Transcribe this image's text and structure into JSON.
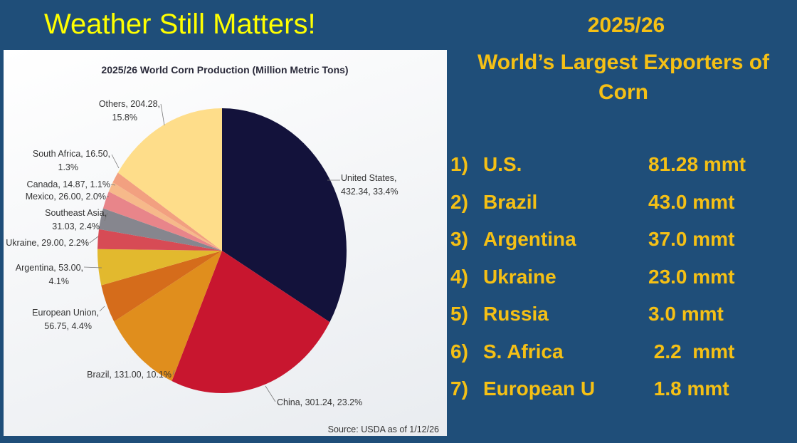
{
  "slide_title": "Weather Still Matters!",
  "right_panel": {
    "year": "2025/26",
    "heading_line1": "World’s Largest Exporters of",
    "heading_line2": "Corn",
    "exporters": [
      {
        "rank": "1)",
        "country": "U.S.",
        "amount": "81.28 mmt"
      },
      {
        "rank": "2)",
        "country": "Brazil",
        "amount": "43.0 mmt"
      },
      {
        "rank": "3)",
        "country": "Argentina",
        "amount": "37.0 mmt"
      },
      {
        "rank": "4)",
        "country": "Ukraine",
        "amount": "23.0 mmt"
      },
      {
        "rank": "5)",
        "country": "Russia",
        "amount": "3.0 mmt"
      },
      {
        "rank": "6)",
        "country": "S. Africa",
        "amount": " 2.2  mmt"
      },
      {
        "rank": "7)",
        "country": "European U",
        "amount": " 1.8 mmt"
      }
    ]
  },
  "chart_data": {
    "type": "pie",
    "title": "2025/26 World Corn Production (Million Metric Tons)",
    "source": "Source: USDA as of 1/12/26",
    "slices": [
      {
        "label": "United States",
        "value": 432.34,
        "percent": 33.4,
        "text1": "United States,",
        "text2": "432.34, 33.4%",
        "color": "#13123b"
      },
      {
        "label": "China",
        "value": 301.24,
        "percent": 23.2,
        "text1": "China, 301.24, 23.2%",
        "text2": "",
        "color": "#c8162f"
      },
      {
        "label": "Brazil",
        "value": 131.0,
        "percent": 10.1,
        "text1": "Brazil, 131.00, 10.1%",
        "text2": "",
        "color": "#e08e1d"
      },
      {
        "label": "European Union",
        "value": 56.75,
        "percent": 4.4,
        "text1": "European Union,",
        "text2": "56.75, 4.4%",
        "color": "#d56c1b"
      },
      {
        "label": "Argentina",
        "value": 53.0,
        "percent": 4.1,
        "text1": "Argentina, 53.00,",
        "text2": "4.1%",
        "color": "#e2b92e"
      },
      {
        "label": "Ukraine",
        "value": 29.0,
        "percent": 2.2,
        "text1": "Ukraine, 29.00, 2.2%",
        "text2": "",
        "color": "#d74b55"
      },
      {
        "label": "Southeast Asia",
        "value": 31.03,
        "percent": 2.4,
        "text1": "Southeast Asia,",
        "text2": "31.03, 2.4%",
        "color": "#86868e"
      },
      {
        "label": "Mexico",
        "value": 26.0,
        "percent": 2.0,
        "text1": "Mexico, 26.00, 2.0%",
        "text2": "",
        "color": "#e8858a"
      },
      {
        "label": "Canada",
        "value": 14.87,
        "percent": 1.1,
        "text1": "Canada, 14.87, 1.1%",
        "text2": "",
        "color": "#f6b98a"
      },
      {
        "label": "South Africa",
        "value": 16.5,
        "percent": 1.3,
        "text1": "South Africa, 16.50,",
        "text2": "1.3%",
        "color": "#f2a080"
      },
      {
        "label": "Others",
        "value": 204.28,
        "percent": 15.8,
        "text1": "Others, 204.28,",
        "text2": "15.8%",
        "color": "#fedd8a"
      }
    ]
  }
}
